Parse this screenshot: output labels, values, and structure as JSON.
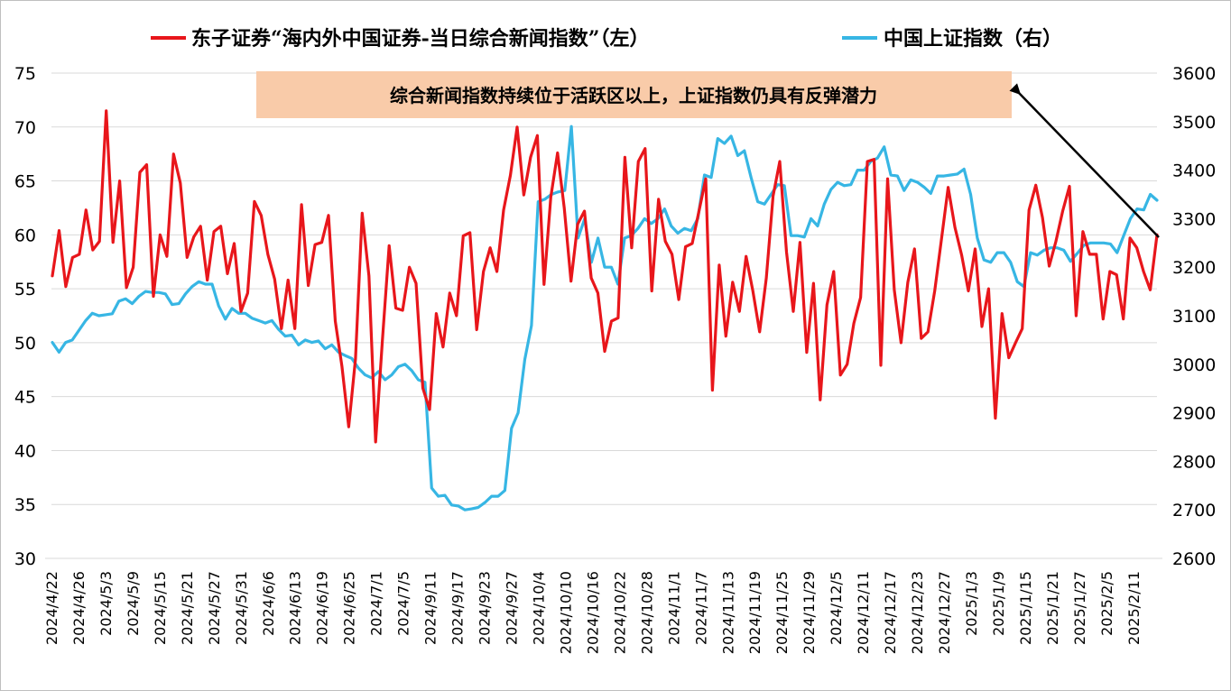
{
  "chart_data": {
    "type": "line",
    "title": "",
    "legend": {
      "position": "top",
      "entries": [
        {
          "name": "东子证券“海内外中国证券-当日综合新闻指数”（左）",
          "color": "#e8161b"
        },
        {
          "name": "中国上证指数（右）",
          "color": "#37b6e4"
        }
      ]
    },
    "annotation": "综合新闻指数持续位于活跃区以上，上证指数仍具有反弹潜力",
    "annotation_color": "#f9cba9",
    "y_left": {
      "range": [
        30,
        75
      ],
      "ticks": [
        "30",
        "35",
        "40",
        "45",
        "50",
        "55",
        "60",
        "65",
        "70",
        "75"
      ]
    },
    "y_right": {
      "range": [
        2600,
        3600
      ],
      "ticks": [
        "2600",
        "2700",
        "2800",
        "2900",
        "3000",
        "3100",
        "3200",
        "3300",
        "3400",
        "3500",
        "3600"
      ]
    },
    "x_tick_labels": [
      "2024/4/22",
      "2024/4/26",
      "2024/5/3",
      "2024/5/9",
      "2024/5/15",
      "2024/5/21",
      "2024/5/27",
      "2024/5/31",
      "2024/6/6",
      "2024/6/13",
      "2024/6/19",
      "2024/6/25",
      "2024/7/1",
      "2024/7/5",
      "2024/9/11",
      "2024/9/17",
      "2024/9/23",
      "2024/9/27",
      "2024/10/4",
      "2024/10/10",
      "2024/10/16",
      "2024/10/22",
      "2024/10/28",
      "2024/11/1",
      "2024/11/7",
      "2024/11/13",
      "2024/11/19",
      "2024/11/25",
      "2024/11/29",
      "2024/12/5",
      "2024/12/11",
      "2024/12/17",
      "2024/12/23",
      "2024/12/27",
      "2025/1/3",
      "2025/1/9",
      "2025/1/15",
      "2025/1/21",
      "2025/1/27",
      "2025/2/5",
      "2025/2/11"
    ],
    "grid": "horizontal",
    "series": [
      {
        "name": "东子证券“海内外中国证券-当日综合新闻指数”（左）",
        "axis": "left",
        "color": "#e8161b",
        "values": [
          56.2,
          60.4,
          55.2,
          57.9,
          58.2,
          62.3,
          58.6,
          59.4,
          71.5,
          59.3,
          65.0,
          55.1,
          57.0,
          65.8,
          66.5,
          54.3,
          60.0,
          58.0,
          67.5,
          64.8,
          57.9,
          59.8,
          60.8,
          55.8,
          60.3,
          60.8,
          56.4,
          59.2,
          52.9,
          54.6,
          63.1,
          61.8,
          58.2,
          55.9,
          51.3,
          55.8,
          51.3,
          62.8,
          55.3,
          59.1,
          59.3,
          61.8,
          52.0,
          47.8,
          42.2,
          48.5,
          62.0,
          56.2,
          40.8,
          50.2,
          59.0,
          53.2,
          53.0,
          57.0,
          55.5,
          45.8,
          43.8,
          52.7,
          49.6,
          54.6,
          52.5,
          59.9,
          60.2,
          51.2,
          56.6,
          58.8,
          56.6,
          62.3,
          65.5,
          70.0,
          63.7,
          67.2,
          69.2,
          55.4,
          63.5,
          67.6,
          62.5,
          55.7,
          61.0,
          62.2,
          56.0,
          54.6,
          49.2,
          52.0,
          52.3,
          67.2,
          58.8,
          66.8,
          68.0,
          54.8,
          63.3,
          59.4,
          58.2,
          54.0,
          58.9,
          59.2,
          62.2,
          65.2,
          45.6,
          57.2,
          50.6,
          55.6,
          52.9,
          58.0,
          54.8,
          51.0,
          56.0,
          63.6,
          66.8,
          58.4,
          52.9,
          59.3,
          49.1,
          55.5,
          44.7,
          53.5,
          56.6,
          47.0,
          48.0,
          51.8,
          54.2,
          66.8,
          67.0,
          47.9,
          65.2,
          54.9,
          50.0,
          55.6,
          58.7,
          50.4,
          51.0,
          54.8,
          59.6,
          64.4,
          60.7,
          58.1,
          54.8,
          58.7,
          51.5,
          55.0,
          43.0,
          52.7,
          48.6,
          50.0,
          51.3,
          62.3,
          64.6,
          61.6,
          57.1,
          59.4,
          62.2,
          64.5,
          52.5,
          60.3,
          58.2,
          58.2,
          52.2,
          56.6,
          56.3,
          52.2,
          59.7,
          58.8,
          56.6,
          54.9,
          60.0
        ]
      },
      {
        "name": "中国上证指数（右）",
        "axis": "right",
        "color": "#37b6e4",
        "values": [
          3045,
          3025,
          3045,
          3050,
          3070,
          3090,
          3105,
          3100,
          3102,
          3104,
          3130,
          3135,
          3125,
          3140,
          3150,
          3148,
          3148,
          3145,
          3123,
          3125,
          3145,
          3160,
          3170,
          3165,
          3165,
          3120,
          3093,
          3115,
          3105,
          3105,
          3095,
          3090,
          3085,
          3090,
          3072,
          3058,
          3060,
          3040,
          3050,
          3045,
          3048,
          3032,
          3040,
          3025,
          3018,
          3012,
          2992,
          2978,
          2972,
          2985,
          2968,
          2978,
          2995,
          3000,
          2987,
          2968,
          2963,
          2745,
          2728,
          2730,
          2710,
          2708,
          2700,
          2702,
          2705,
          2715,
          2728,
          2728,
          2740,
          2868,
          2900,
          3010,
          3080,
          3335,
          3340,
          3350,
          3355,
          3358,
          3490,
          3260,
          3300,
          3210,
          3260,
          3200,
          3200,
          3165,
          3260,
          3265,
          3280,
          3300,
          3290,
          3300,
          3320,
          3285,
          3270,
          3280,
          3275,
          3300,
          3390,
          3385,
          3465,
          3455,
          3470,
          3430,
          3440,
          3385,
          3335,
          3330,
          3350,
          3370,
          3368,
          3265,
          3265,
          3262,
          3300,
          3285,
          3330,
          3360,
          3375,
          3368,
          3370,
          3400,
          3400,
          3418,
          3425,
          3448,
          3390,
          3388,
          3358,
          3380,
          3375,
          3365,
          3352,
          3388,
          3388,
          3390,
          3392,
          3402,
          3350,
          3260,
          3215,
          3210,
          3230,
          3230,
          3210,
          3170,
          3160,
          3230,
          3225,
          3235,
          3240,
          3240,
          3235,
          3212,
          3228,
          3245,
          3250,
          3250,
          3250,
          3248,
          3230,
          3265,
          3300,
          3320,
          3318,
          3350,
          3338
        ]
      }
    ]
  }
}
